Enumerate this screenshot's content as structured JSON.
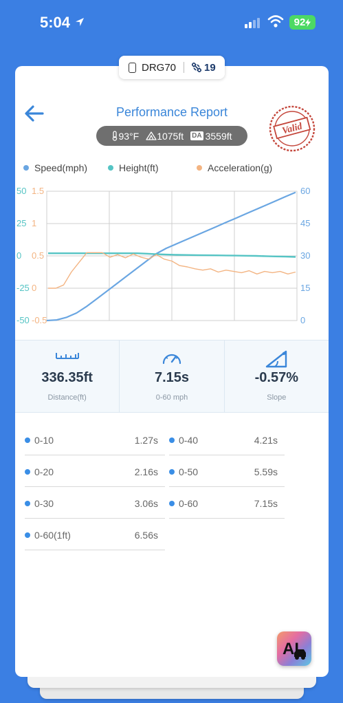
{
  "status_bar": {
    "time": "5:04",
    "battery": "92"
  },
  "device": {
    "name": "DRG70",
    "satellites": "19"
  },
  "header": {
    "title": "Performance Report",
    "stamp_text": "Valid"
  },
  "conditions": {
    "temperature": "93°F",
    "altitude": "1075ft",
    "density_altitude_label": "DA",
    "density_altitude": "3559ft"
  },
  "colors": {
    "speed": "#6aa6e2",
    "height": "#55c4c4",
    "acceleration": "#f3b482",
    "accent": "#3a86d9"
  },
  "chart_data": {
    "type": "line",
    "legend": [
      "Speed(mph)",
      "Height(ft)",
      "Acceleration(g)"
    ],
    "axes": {
      "height_ticks": [
        "50",
        "25",
        "0",
        "-25",
        "-50"
      ],
      "acceleration_ticks": [
        "1.5",
        "1",
        "0.5",
        "0",
        "-0.5"
      ],
      "speed_ticks": [
        "60",
        "45",
        "30",
        "15",
        "0"
      ],
      "speed_range": [
        0,
        60
      ],
      "height_range": [
        -50,
        50
      ],
      "acceleration_range": [
        -0.5,
        1.5
      ]
    },
    "grid": true,
    "series": [
      {
        "name": "Speed(mph)",
        "axis": "right",
        "values": [
          0,
          0.3,
          1.5,
          3.5,
          6.5,
          10,
          13.5,
          17,
          20.5,
          24,
          27.5,
          31,
          33.5,
          35.5,
          37.5,
          39.5,
          41.5,
          43.5,
          45.5,
          47.5,
          49.5,
          51.5,
          53.5,
          55.5,
          57.5,
          59.5
        ]
      },
      {
        "name": "Height(ft)",
        "axis": "left-outer",
        "values": [
          2,
          2,
          2,
          2,
          2,
          2,
          2,
          2,
          2,
          2,
          1.7,
          1.3,
          1,
          0.8,
          0.7,
          0.6,
          0.5,
          0.4,
          0.3,
          0.2,
          0.1,
          0,
          -0.2,
          -0.4,
          -0.6,
          -0.8
        ]
      },
      {
        "name": "Acceleration(g)",
        "axis": "left-inner",
        "values": [
          0.0,
          0.0,
          0.05,
          0.25,
          0.4,
          0.55,
          0.55,
          0.55,
          0.48,
          0.52,
          0.47,
          0.53,
          0.48,
          0.45,
          0.52,
          0.45,
          0.42,
          0.35,
          0.33,
          0.3,
          0.28,
          0.3,
          0.25,
          0.28,
          0.26,
          0.24,
          0.27,
          0.22,
          0.26,
          0.24,
          0.26,
          0.22,
          0.25
        ]
      }
    ]
  },
  "stats": [
    {
      "value": "336.35ft",
      "label": "Distance(ft)",
      "icon": "ruler-icon"
    },
    {
      "value": "7.15s",
      "label": "0-60 mph",
      "icon": "speedometer-icon"
    },
    {
      "value": "-0.57%",
      "label": "Slope",
      "icon": "slope-icon"
    }
  ],
  "splits": [
    {
      "name": "0-10",
      "time": "1.27s"
    },
    {
      "name": "0-40",
      "time": "4.21s"
    },
    {
      "name": "0-20",
      "time": "2.16s"
    },
    {
      "name": "0-50",
      "time": "5.59s"
    },
    {
      "name": "0-30",
      "time": "3.06s"
    },
    {
      "name": "0-60",
      "time": "7.15s"
    },
    {
      "name": "0-60(1ft)",
      "time": "6.56s"
    }
  ],
  "ai_button": {
    "label": "AI"
  }
}
